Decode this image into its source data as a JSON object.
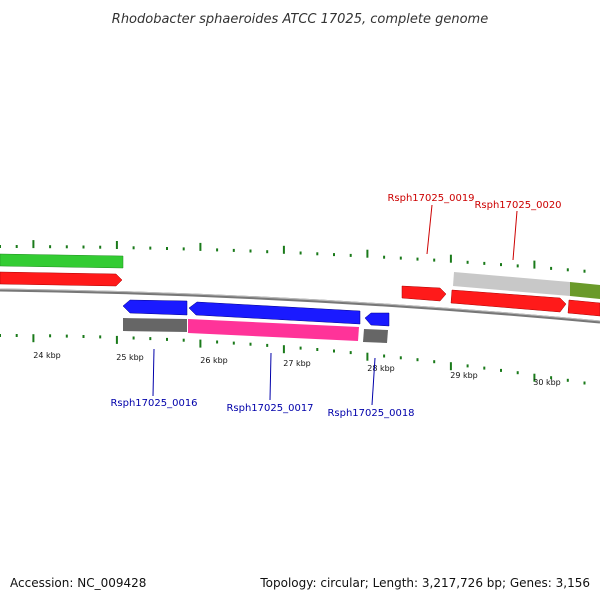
{
  "title": "Rhodobacter sphaeroides ATCC 17025, complete genome",
  "footer": {
    "accession": "Accession: NC_009428",
    "summary": "Topology: circular; Length: 3,217,726 bp; Genes: 3,156"
  },
  "colors": {
    "forward_strand": "#ff1a1a",
    "reverse_strand": "#1a1aff",
    "cds_magenta": "#ff3399",
    "cds_gray": "#666666",
    "cds_green": "#33cc33",
    "cds_light_gray": "#c8c8c8",
    "cds_olive": "#6a9a2a",
    "tick": "#1a7a1a",
    "genome_line": "#777777",
    "label_forward": "#cc0000",
    "label_reverse": "#0000aa"
  },
  "axis": {
    "unit": "kbp",
    "tick_labels": [
      "24 kbp",
      "25 kbp",
      "26 kbp",
      "27 kbp",
      "28 kbp",
      "29 kbp",
      "30 kbp"
    ]
  },
  "genes": [
    {
      "id": "Rsph17025_0016",
      "strand": "reverse"
    },
    {
      "id": "Rsph17025_0017",
      "strand": "reverse"
    },
    {
      "id": "Rsph17025_0018",
      "strand": "reverse"
    },
    {
      "id": "Rsph17025_0019",
      "strand": "forward"
    },
    {
      "id": "Rsph17025_0020",
      "strand": "forward"
    }
  ]
}
